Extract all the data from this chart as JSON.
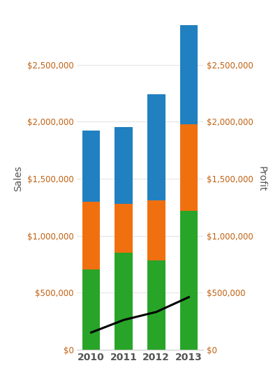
{
  "years": [
    "2010",
    "2011",
    "2012",
    "2013"
  ],
  "green": [
    700000,
    850000,
    780000,
    1220000
  ],
  "orange": [
    600000,
    430000,
    530000,
    760000
  ],
  "blue": [
    620000,
    670000,
    930000,
    870000
  ],
  "line_values": [
    150000,
    260000,
    330000,
    460000
  ],
  "color_green": "#28a428",
  "color_orange": "#f07010",
  "color_blue": "#2080c0",
  "color_line": "#000000",
  "ylabel_left": "Sales",
  "ylabel_right": "Profit",
  "ylim": [
    0,
    3000000
  ],
  "yticks": [
    0,
    500000,
    1000000,
    1500000,
    2000000,
    2500000
  ],
  "tick_color": "#c06010",
  "xlabel_color": "#555555",
  "background_color": "#ffffff",
  "bar_width": 0.55,
  "line_width": 2.2
}
